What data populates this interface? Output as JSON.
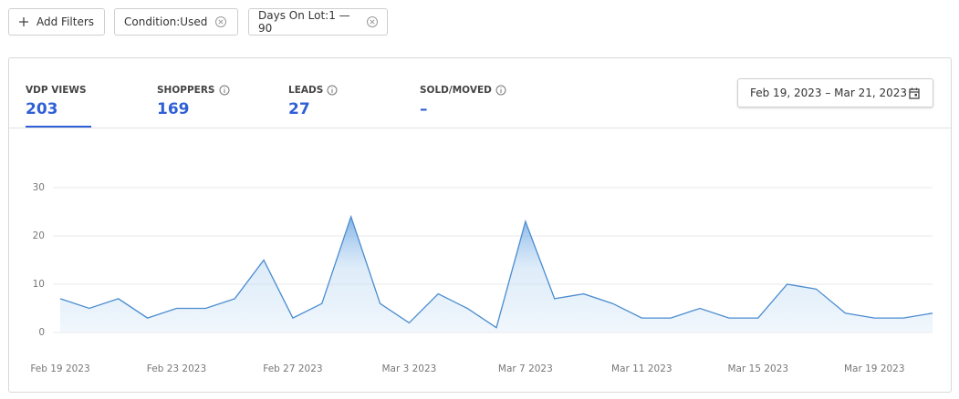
{
  "filters": {
    "add": "Add Filters",
    "chips": [
      "Condition:Used",
      "Days On Lot:1 — 90"
    ]
  },
  "tabs": [
    {
      "label": "VDP VIEWS",
      "value": 203
    },
    {
      "label": "SHOPPERS",
      "value": 169
    },
    {
      "label": "LEADS",
      "value": 27
    },
    {
      "label": "SOLD/MOVED",
      "value": "–"
    }
  ],
  "date_range": "Feb 19, 2023 – Mar 21, 2023",
  "chart_data": {
    "type": "line",
    "categories": [
      "Feb 19 2023",
      null,
      null,
      null,
      "Feb 23 2023",
      null,
      null,
      null,
      "Feb 27 2023",
      null,
      null,
      null,
      "Mar 3 2023",
      null,
      null,
      null,
      "Mar 7 2023",
      null,
      null,
      null,
      "Mar 11 2023",
      null,
      null,
      null,
      "Mar 15 2023",
      null,
      null,
      null,
      "Mar 19 2023",
      null,
      null
    ],
    "series": [
      {
        "color": "#4a8cd0",
        "values": [
          7,
          5,
          7,
          3,
          5,
          5,
          7,
          15,
          3,
          6,
          24,
          6,
          2,
          8,
          5,
          1,
          23,
          7,
          8,
          6,
          3,
          3,
          5,
          3,
          3,
          10,
          9,
          4,
          3,
          3,
          4
        ]
      }
    ],
    "ylim": [
      0,
      30
    ],
    "yticks": [
      0,
      10,
      20,
      30
    ],
    "grid": true
  }
}
